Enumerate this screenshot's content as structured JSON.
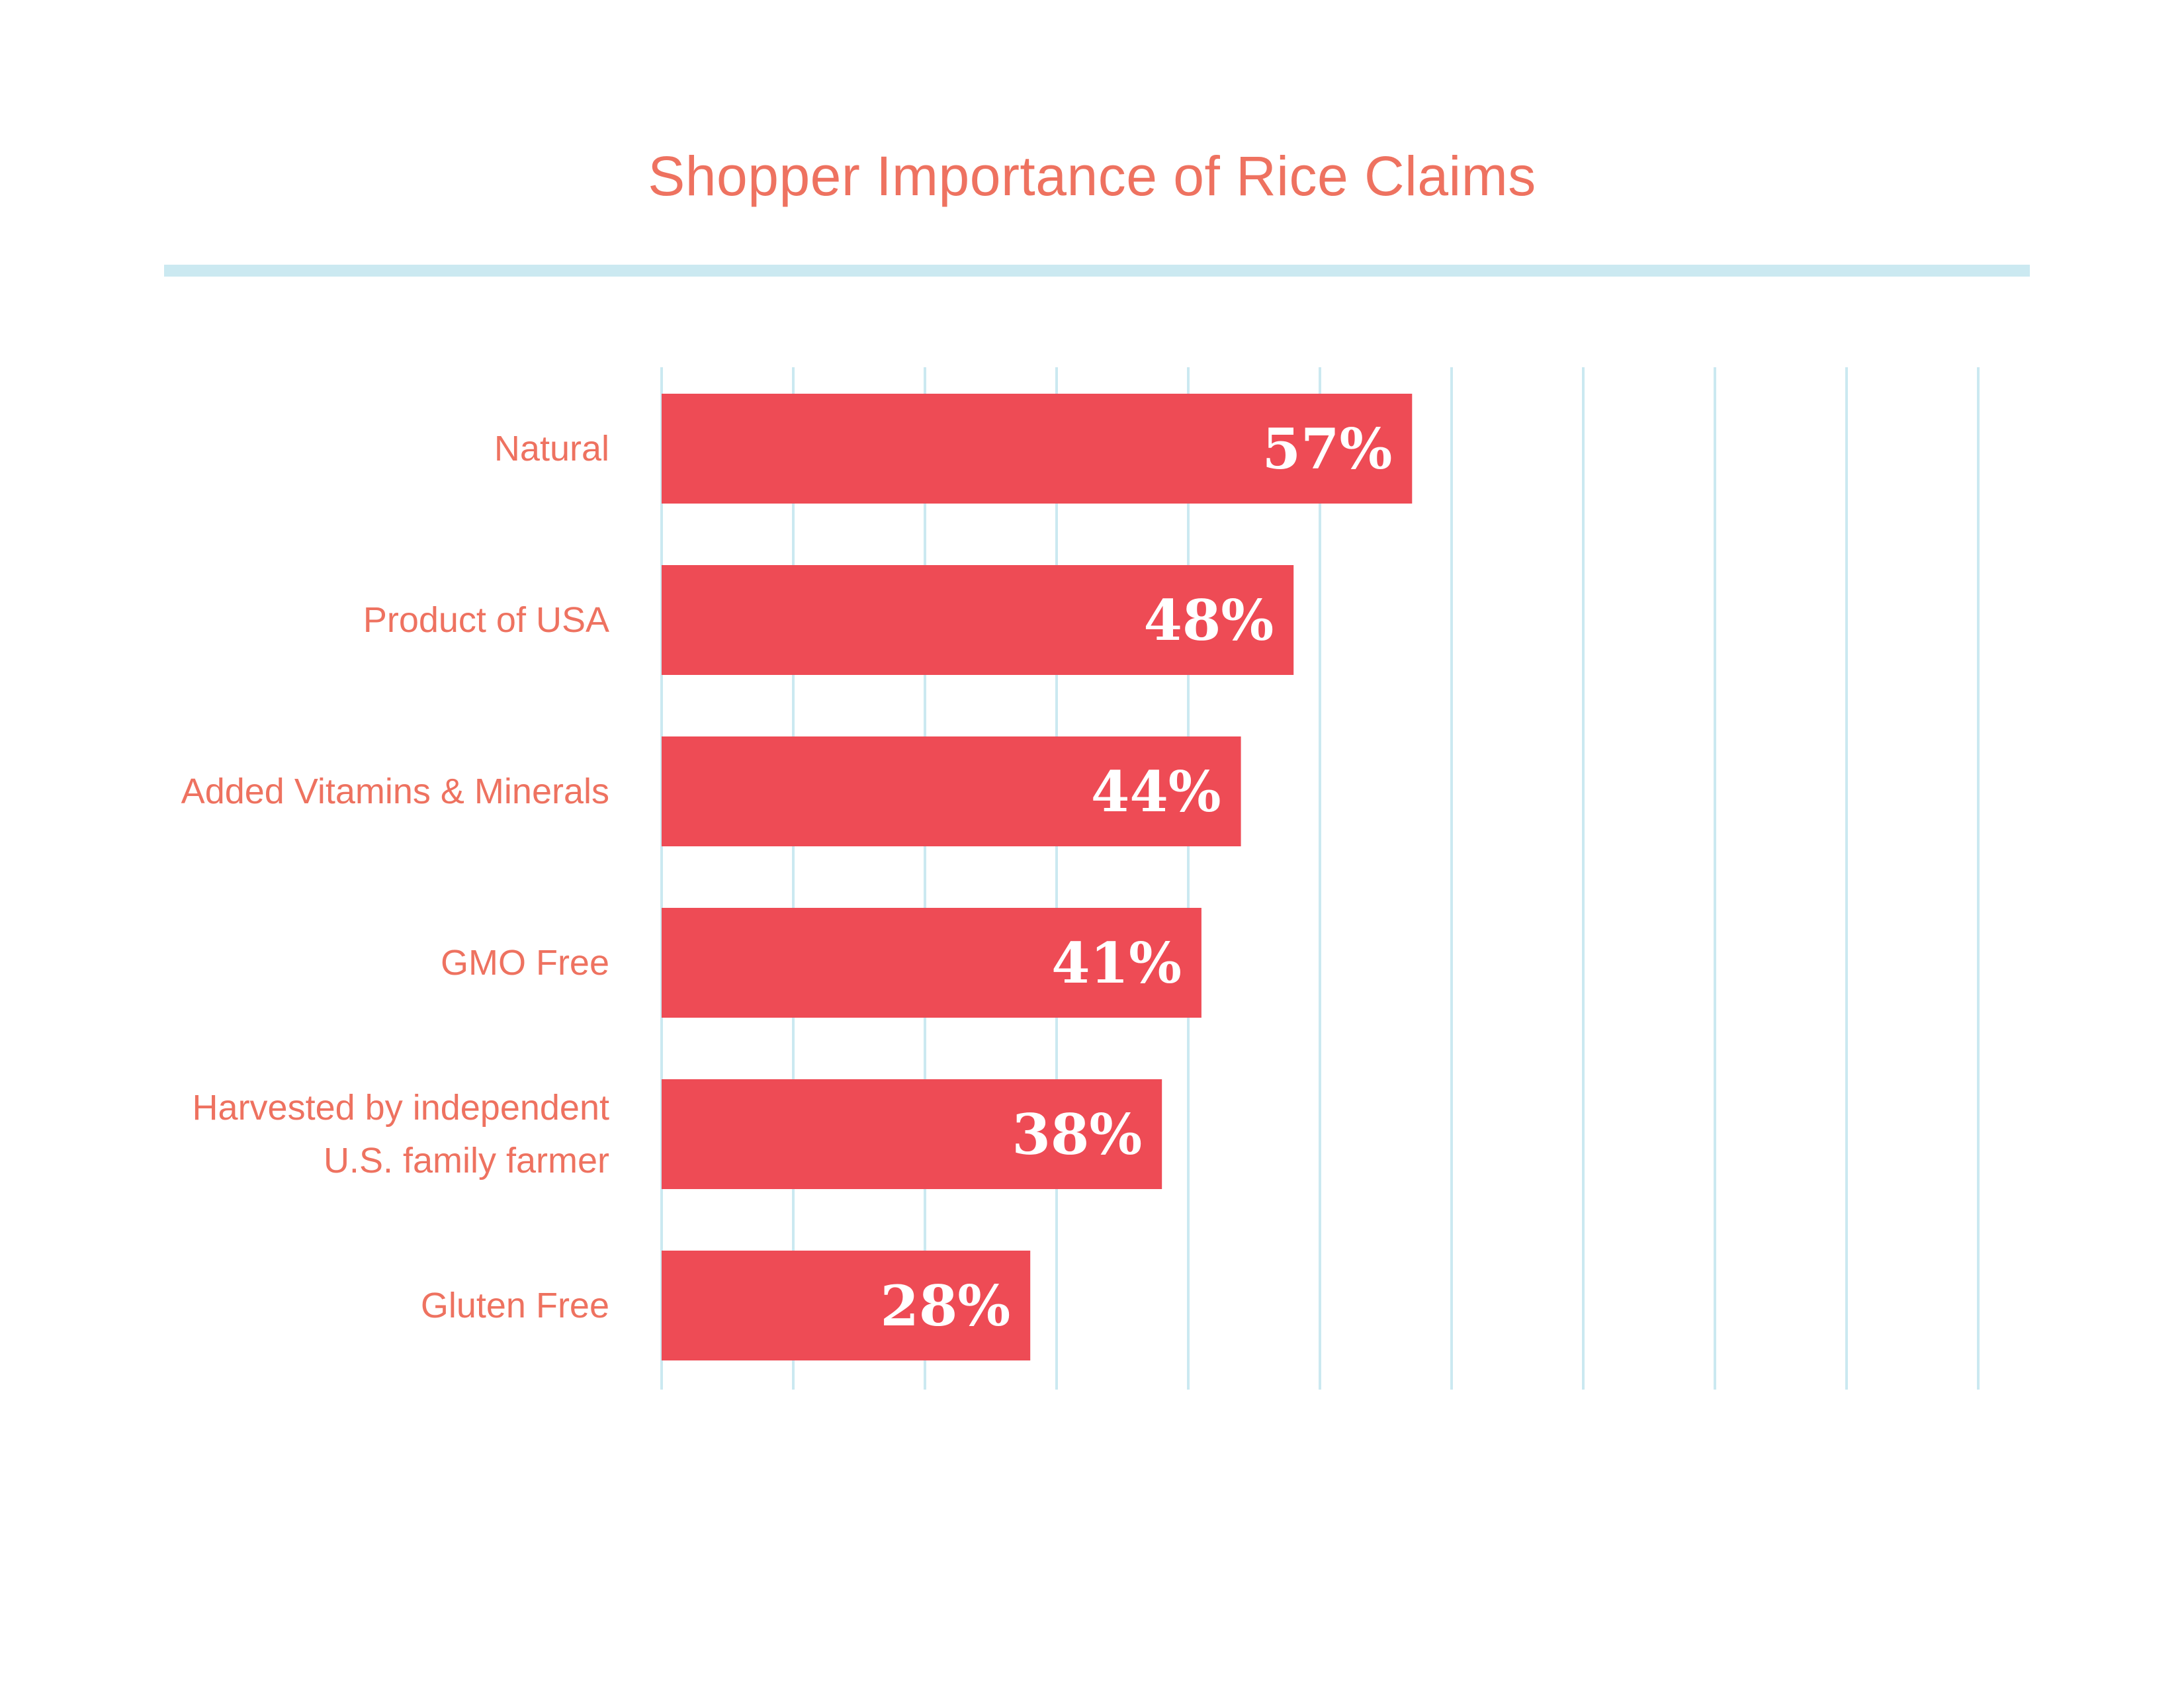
{
  "chart_data": {
    "type": "bar",
    "orientation": "horizontal",
    "title": "Shopper Importance of Rice Claims",
    "xlabel": "",
    "ylabel": "",
    "xlim": [
      0,
      100
    ],
    "grid": true,
    "gridlines": 11,
    "categories": [
      "Natural",
      "Product of USA",
      "Added Vitamins & Minerals",
      "GMO Free",
      "Harvested by independent\nU.S. family farmer",
      "Gluten Free"
    ],
    "values": [
      57,
      48,
      44,
      41,
      38,
      28
    ],
    "value_labels": [
      "57%",
      "48%",
      "44%",
      "41%",
      "38%",
      "28%"
    ],
    "colors": {
      "bar": "#ee4b55",
      "label": "#ee7260",
      "grid": "#cbe9f1",
      "value_text": "#ffffff"
    }
  }
}
